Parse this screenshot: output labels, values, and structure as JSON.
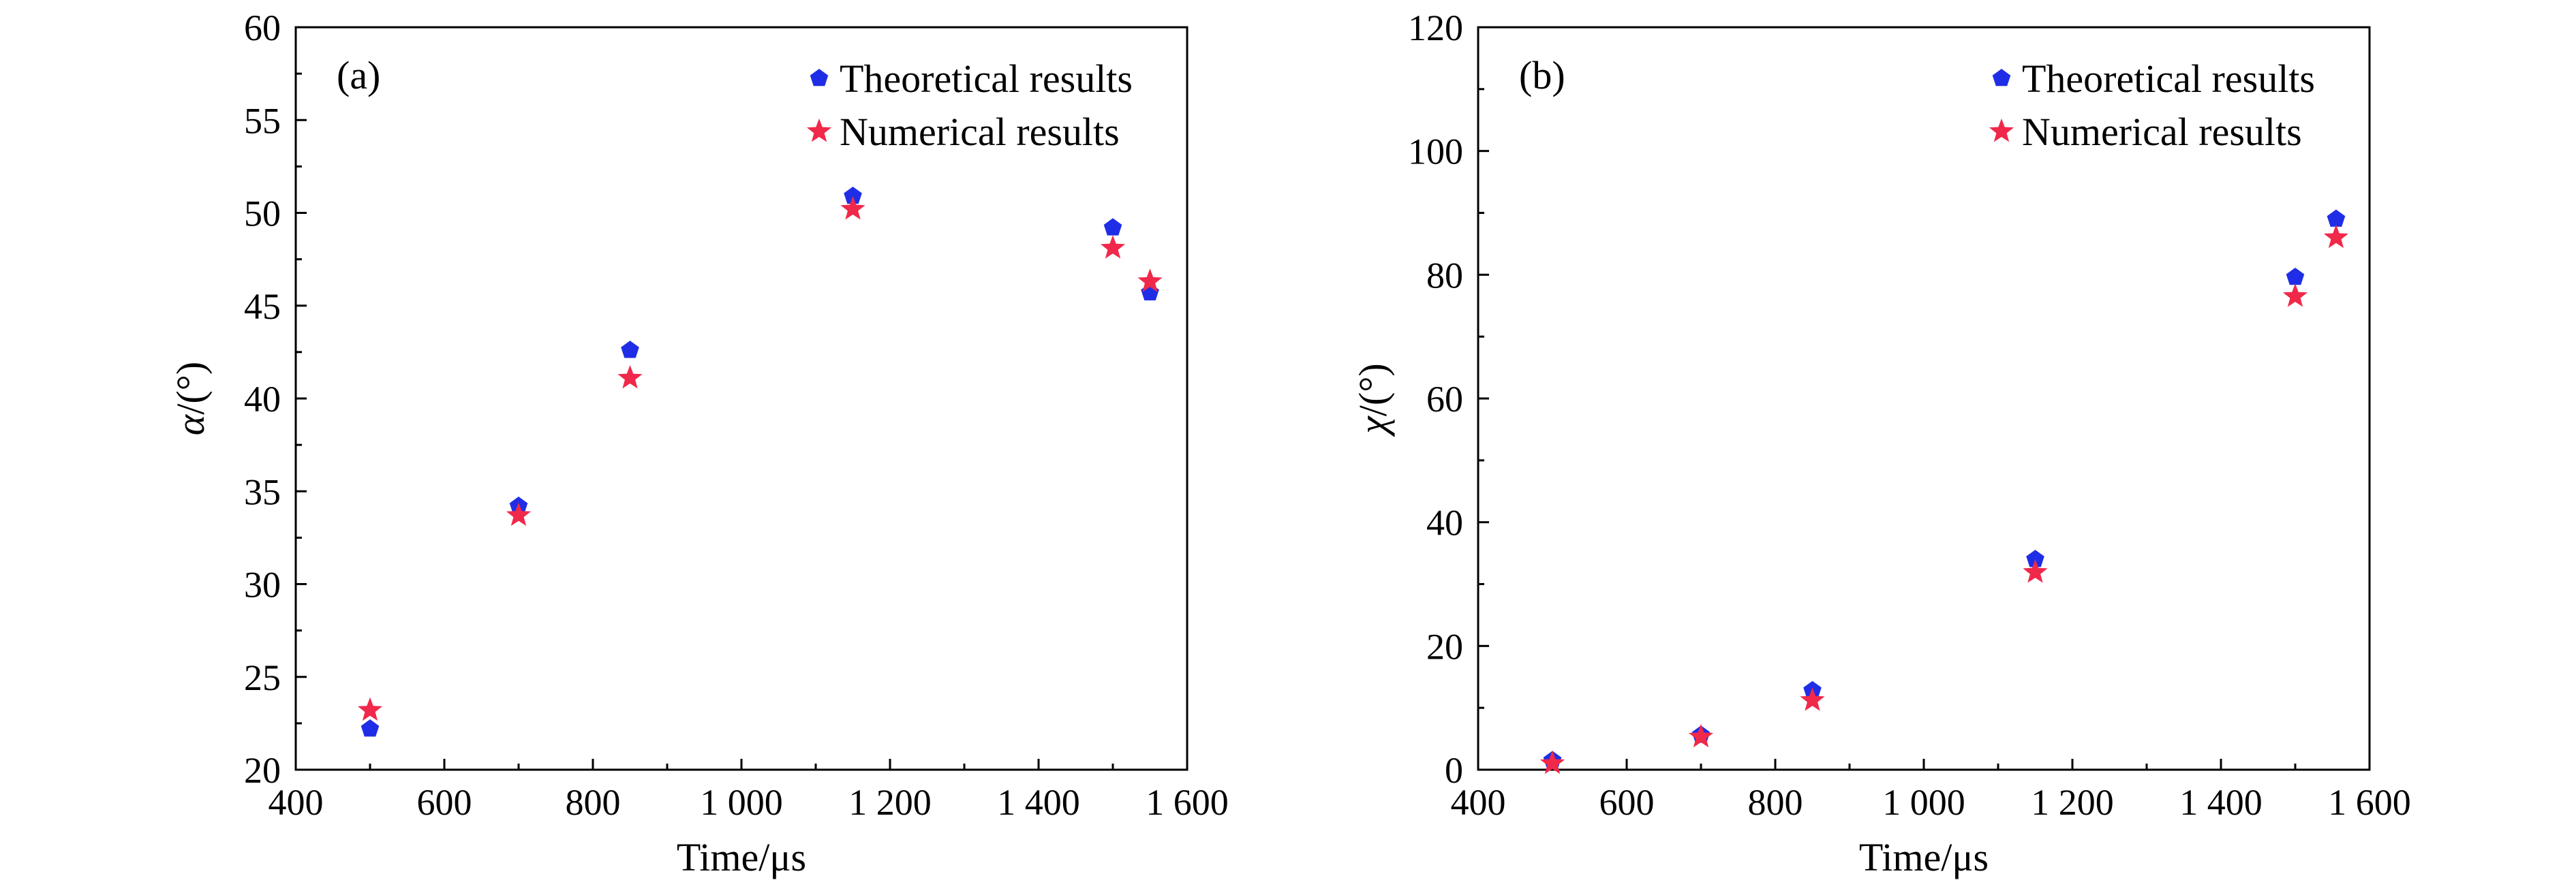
{
  "colors": {
    "theoretical": "#1f2ee6",
    "numerical": "#f0284a",
    "axis": "#000000"
  },
  "chart_data": [
    {
      "type": "scatter",
      "panel_label": "(a)",
      "xlabel": "Time/μs",
      "ylabel_symbol": "α",
      "ylabel_unit": "/(°)",
      "xlim": [
        400,
        1600
      ],
      "ylim": [
        20,
        60
      ],
      "xticks": [
        400,
        600,
        800,
        1000,
        1200,
        1400,
        1600
      ],
      "xtick_labels": [
        "400",
        "600",
        "800",
        "1 000",
        "1 200",
        "1 400",
        "1 600"
      ],
      "yticks": [
        20,
        25,
        30,
        35,
        40,
        45,
        50,
        55,
        60
      ],
      "ytick_labels": [
        "20",
        "25",
        "30",
        "35",
        "40",
        "45",
        "50",
        "55",
        "60"
      ],
      "grid": false,
      "legend_position": "top-right",
      "series": [
        {
          "name": "Theoretical results",
          "marker": "pentagon",
          "x": [
            500,
            700,
            850,
            1150,
            1500,
            1550
          ],
          "y": [
            22.2,
            34.2,
            42.6,
            50.9,
            49.2,
            45.7
          ]
        },
        {
          "name": "Numerical results",
          "marker": "star",
          "x": [
            500,
            700,
            850,
            1150,
            1500,
            1550
          ],
          "y": [
            23.2,
            33.7,
            41.1,
            50.2,
            48.1,
            46.3
          ]
        }
      ]
    },
    {
      "type": "scatter",
      "panel_label": "(b)",
      "xlabel": "Time/μs",
      "ylabel_symbol": "χ",
      "ylabel_unit": "/(°)",
      "xlim": [
        400,
        1600
      ],
      "ylim": [
        0,
        120
      ],
      "xticks": [
        400,
        600,
        800,
        1000,
        1200,
        1400,
        1600
      ],
      "xtick_labels": [
        "400",
        "600",
        "800",
        "1 000",
        "1 200",
        "1 400",
        "1 600"
      ],
      "yticks": [
        0,
        20,
        40,
        60,
        80,
        100,
        120
      ],
      "ytick_labels": [
        "0",
        "20",
        "40",
        "60",
        "80",
        "100",
        "120"
      ],
      "grid": false,
      "legend_position": "top-right",
      "series": [
        {
          "name": "Theoretical results",
          "marker": "pentagon",
          "x": [
            500,
            700,
            850,
            1150,
            1500,
            1555
          ],
          "y": [
            1.5,
            5.6,
            12.8,
            34.0,
            79.6,
            89.0
          ]
        },
        {
          "name": "Numerical results",
          "marker": "star",
          "x": [
            500,
            700,
            850,
            1150,
            1500,
            1555
          ],
          "y": [
            1.0,
            5.3,
            11.2,
            31.9,
            76.5,
            86.0
          ]
        }
      ]
    }
  ]
}
